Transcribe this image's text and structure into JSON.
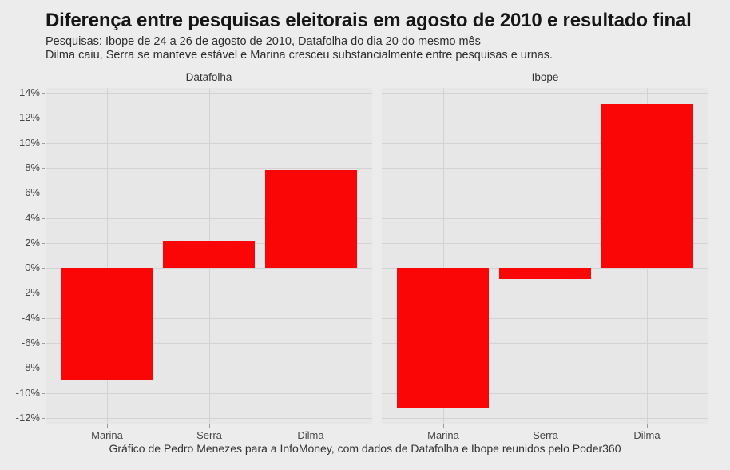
{
  "title": "Diferença entre pesquisas eleitorais em agosto de 2010 e resultado final",
  "subtitle1": "Pesquisas: Ibope de 24 a 26 de agosto de 2010, Datafolha do dia 20 do mesmo mês",
  "subtitle2": "Dilma caiu, Serra se manteve estável e Marina cresceu substancialmente entre pesquisas e urnas.",
  "caption": "Gráfico de Pedro Menezes para a InfoMoney, com dados de Datafolha e Ibope reunidos pelo Poder360",
  "colors": {
    "bar": "#fa0607",
    "figure_background": "#ececec",
    "panel_background": "#e7e7e7",
    "gridline": "#d3d3d3",
    "title_text": "#161616",
    "subtitle_text": "#2e2e2e",
    "axis_text": "#474747",
    "strip_text": "#333333"
  },
  "chart_data": {
    "type": "bar",
    "categories": [
      "Marina",
      "Serra",
      "Dilma"
    ],
    "facets": [
      {
        "label": "Datafolha",
        "values": [
          -9.0,
          2.2,
          7.8
        ]
      },
      {
        "label": "Ibope",
        "values": [
          -11.2,
          -0.9,
          13.1
        ]
      }
    ],
    "title": "Diferença entre pesquisas eleitorais em agosto de 2010 e resultado final",
    "xlabel": "",
    "ylabel": "",
    "ylim": [
      -12,
      14
    ],
    "ytick_values": [
      14,
      12,
      10,
      8,
      6,
      4,
      2,
      0,
      -2,
      -4,
      -6,
      -8,
      -10,
      -12
    ],
    "ytick_labels": [
      "14%",
      "12%",
      "10%",
      "8%",
      "6%",
      "4%",
      "2%",
      "0%",
      "-2%",
      "-4%",
      "-6%",
      "-8%",
      "-10%",
      "-12%"
    ],
    "grid": true,
    "legend": false
  }
}
